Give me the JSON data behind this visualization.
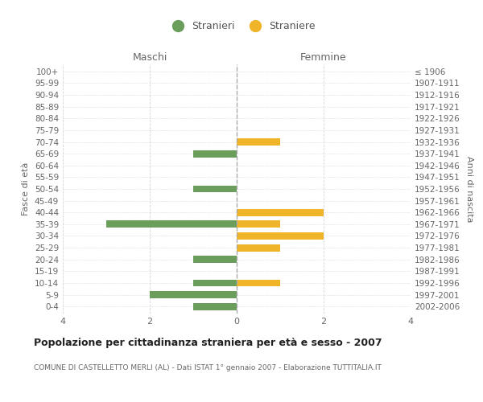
{
  "age_groups": [
    "0-4",
    "5-9",
    "10-14",
    "15-19",
    "20-24",
    "25-29",
    "30-34",
    "35-39",
    "40-44",
    "45-49",
    "50-54",
    "55-59",
    "60-64",
    "65-69",
    "70-74",
    "75-79",
    "80-84",
    "85-89",
    "90-94",
    "95-99",
    "100+"
  ],
  "birth_years": [
    "2002-2006",
    "1997-2001",
    "1992-1996",
    "1987-1991",
    "1982-1986",
    "1977-1981",
    "1972-1976",
    "1967-1971",
    "1962-1966",
    "1957-1961",
    "1952-1956",
    "1947-1951",
    "1942-1946",
    "1937-1941",
    "1932-1936",
    "1927-1931",
    "1922-1926",
    "1917-1921",
    "1912-1916",
    "1907-1911",
    "≤ 1906"
  ],
  "maschi_stranieri": [
    1,
    2,
    1,
    0,
    1,
    0,
    0,
    3,
    0,
    0,
    1,
    0,
    0,
    1,
    0,
    0,
    0,
    0,
    0,
    0,
    0
  ],
  "femmine_straniere": [
    0,
    0,
    1,
    0,
    0,
    1,
    2,
    1,
    2,
    0,
    0,
    0,
    0,
    0,
    1,
    0,
    0,
    0,
    0,
    0,
    0
  ],
  "color_maschi": "#6a9e5a",
  "color_femmine": "#f0b429",
  "title": "Popolazione per cittadinanza straniera per età e sesso - 2007",
  "subtitle": "COMUNE DI CASTELLETTO MERLI (AL) - Dati ISTAT 1° gennaio 2007 - Elaborazione TUTTITALIA.IT",
  "ylabel_left": "Fasce di età",
  "ylabel_right": "Anni di nascita",
  "xlabel_maschi": "Maschi",
  "xlabel_femmine": "Femmine",
  "legend_maschi": "Stranieri",
  "legend_femmine": "Straniere",
  "xlim": 4,
  "background_color": "#ffffff",
  "grid_color": "#cccccc"
}
